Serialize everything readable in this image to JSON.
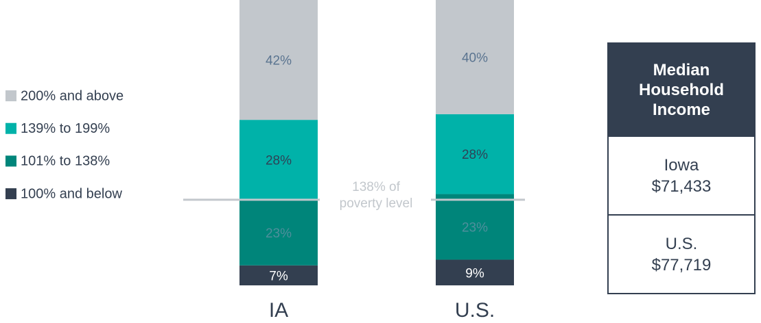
{
  "chart_data": {
    "type": "stacked_bar",
    "categories": [
      "IA",
      "U.S."
    ],
    "series": [
      {
        "name": "100% and below",
        "color": "#333f50",
        "label_color": "#ffffff",
        "values": [
          7,
          9
        ],
        "value_labels": [
          "7%",
          "9%"
        ]
      },
      {
        "name": "101% to 138%",
        "color": "#00857a",
        "label_color": "#4f8f9c",
        "values": [
          23,
          23
        ],
        "value_labels": [
          "23%",
          "23%"
        ]
      },
      {
        "name": "139% to 199%",
        "color": "#00b2a9",
        "label_color": "#2f4256",
        "values": [
          28,
          28
        ],
        "value_labels": [
          "28%",
          "28%"
        ]
      },
      {
        "name": "200% and above",
        "color": "#c2c7cc",
        "label_color": "#5a7490",
        "values": [
          42,
          40
        ],
        "value_labels": [
          "42%",
          "40%"
        ]
      }
    ],
    "annotation": [
      "138% of",
      "poverty level"
    ]
  },
  "table": {
    "header": "Median Household Income",
    "rows": [
      [
        "Iowa",
        "$71,433"
      ],
      [
        "U.S.",
        "$77,719"
      ]
    ]
  }
}
